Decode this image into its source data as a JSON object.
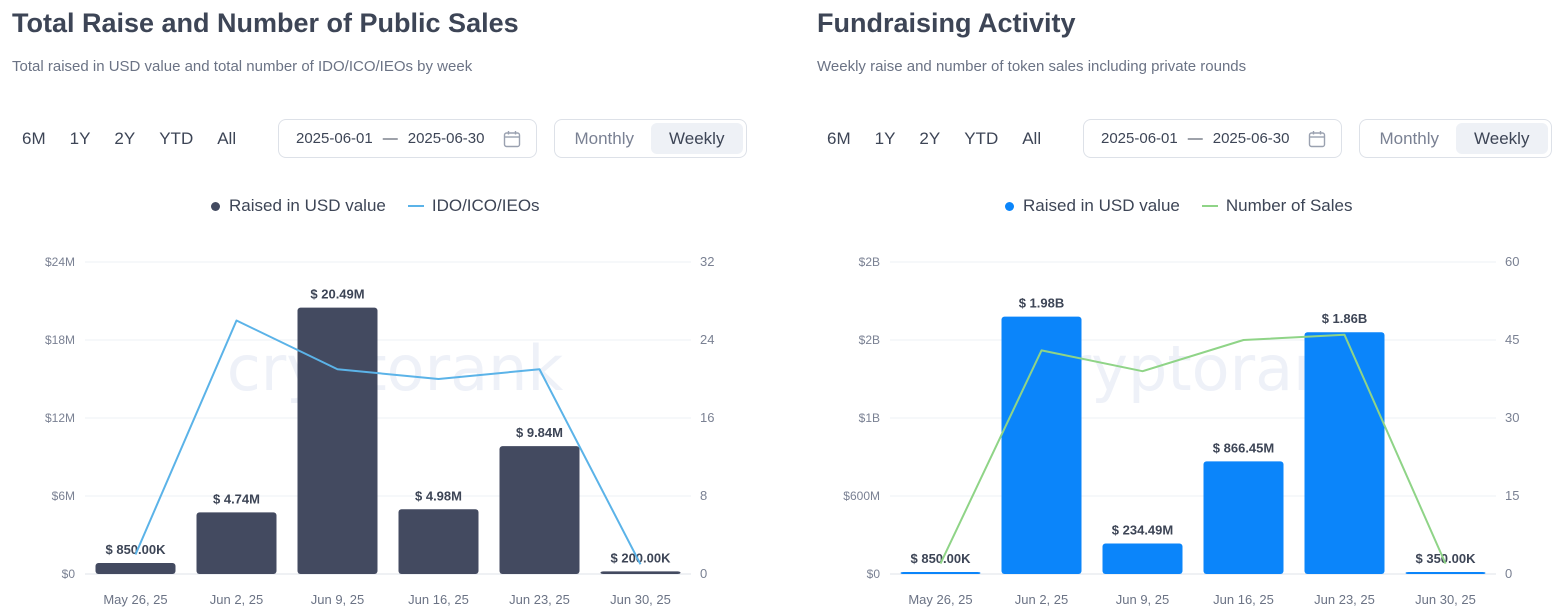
{
  "charts": [
    {
      "title": "Total Raise and Number of Public Sales",
      "subtitle": "Total raised in USD value and total number of IDO/ICO/IEOs by week",
      "ranges": [
        "6M",
        "1Y",
        "2Y",
        "YTD",
        "All"
      ],
      "date_start": "2025-06-01",
      "date_separator": "—",
      "date_end": "2025-06-30",
      "toggle": [
        "Monthly",
        "Weekly"
      ],
      "toggle_active": "Weekly",
      "watermark": "cryptorank"
    },
    {
      "title": "Fundraising Activity",
      "subtitle": "Weekly raise and number of token sales including private rounds",
      "ranges": [
        "6M",
        "1Y",
        "2Y",
        "YTD",
        "All"
      ],
      "date_start": "2025-06-01",
      "date_separator": "—",
      "date_end": "2025-06-30",
      "toggle": [
        "Monthly",
        "Weekly"
      ],
      "toggle_active": "Weekly",
      "watermark": "cryptorank"
    }
  ],
  "chart_data": [
    {
      "type": "bar",
      "categories": [
        "May 26, 25",
        "Jun 2, 25",
        "Jun 9, 25",
        "Jun 16, 25",
        "Jun 23, 25",
        "Jun 30, 25"
      ],
      "series": [
        {
          "name": "Raised in USD value",
          "kind": "bar",
          "axis": "left",
          "color": "#434a60",
          "values": [
            850000,
            4740000,
            20490000,
            4980000,
            9840000,
            200000
          ],
          "labels": [
            "$ 850.00K",
            "$ 4.74M",
            "$ 20.49M",
            "$ 4.98M",
            "$ 9.84M",
            "$ 200.00K"
          ]
        },
        {
          "name": "IDO/ICO/IEOs",
          "kind": "line",
          "axis": "right",
          "color": "#5bb3e8",
          "values": [
            2,
            26,
            21,
            20,
            21,
            1
          ]
        }
      ],
      "y_left": {
        "min": 0,
        "max": 24000000,
        "ticks": [
          0,
          6000000,
          12000000,
          18000000,
          24000000
        ],
        "tick_labels": [
          "$0",
          "$6M",
          "$12M",
          "$18M",
          "$24M"
        ]
      },
      "y_right": {
        "min": 0,
        "max": 32,
        "ticks": [
          0,
          8,
          16,
          24,
          32
        ],
        "tick_labels": [
          "0",
          "8",
          "16",
          "24",
          "32"
        ]
      },
      "grid": true,
      "legend": "top-center"
    },
    {
      "type": "bar",
      "categories": [
        "May 26, 25",
        "Jun 2, 25",
        "Jun 9, 25",
        "Jun 16, 25",
        "Jun 23, 25",
        "Jun 30, 25"
      ],
      "series": [
        {
          "name": "Raised in USD value",
          "kind": "bar",
          "axis": "left",
          "color": "#0b85fa",
          "values": [
            850000,
            1980000000,
            234490000,
            866450000,
            1860000000,
            350000
          ],
          "labels": [
            "$ 850.00K",
            "$ 1.98B",
            "$ 234.49M",
            "$ 866.45M",
            "$ 1.86B",
            "$ 350.00K"
          ]
        },
        {
          "name": "Number of Sales",
          "kind": "line",
          "axis": "right",
          "color": "#8fd487",
          "values": [
            2,
            43,
            39,
            45,
            46,
            2
          ]
        }
      ],
      "y_left": {
        "min": 0,
        "max": 2400000000,
        "ticks": [
          0,
          600000000,
          1200000000,
          1800000000,
          2400000000
        ],
        "tick_labels": [
          "$0",
          "$600M",
          "$1B",
          "$2B",
          "$2B"
        ]
      },
      "y_right": {
        "min": 0,
        "max": 60,
        "ticks": [
          0,
          15,
          30,
          45,
          60
        ],
        "tick_labels": [
          "0",
          "15",
          "30",
          "45",
          "60"
        ]
      },
      "grid": true,
      "legend": "top-center"
    }
  ]
}
